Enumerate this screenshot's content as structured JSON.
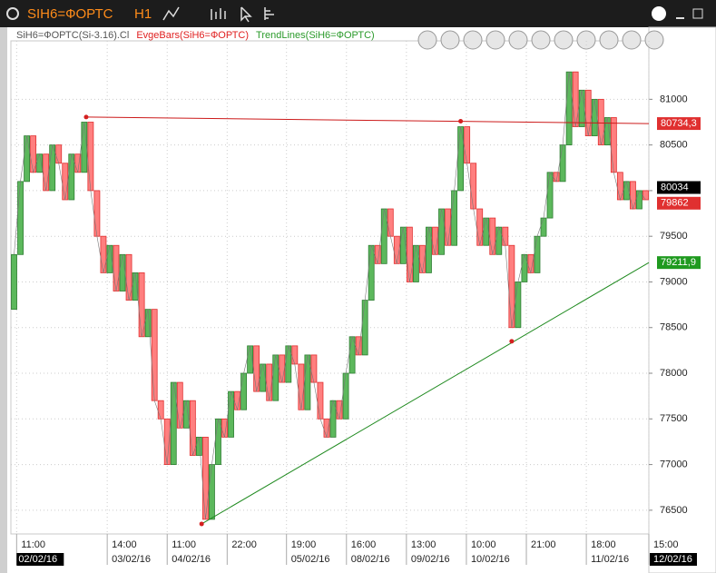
{
  "header": {
    "symbol": "SIH6=ФОРТС",
    "timeframe": "H1"
  },
  "chart_data": {
    "type": "box-bar",
    "legend": [
      {
        "label": "SiH6=ФОРТС(Si-3.16).Cl",
        "color": "#555555"
      },
      {
        "label": "EvgeBars(SiH6=ФОРТС)",
        "color": "#e02020"
      },
      {
        "label": "TrendLines(SiH6=ФОРТС)",
        "color": "#2a9a2a"
      }
    ],
    "up_color": "#5cb85c",
    "down_color": "#ff7f7f",
    "open": [
      78700,
      79300,
      80100,
      80600,
      80200,
      80400,
      80000,
      80500,
      80300,
      79900,
      80400,
      80200,
      80750,
      80000,
      79500,
      79100,
      79400,
      78900,
      79300,
      78800,
      79100,
      78400,
      78700,
      77700,
      77500,
      77000,
      77900,
      77400,
      77700,
      77100,
      77300,
      76400,
      77000,
      77500,
      77300,
      77800,
      77600,
      78000,
      78300,
      77800,
      78100,
      77700,
      78200,
      77900,
      78300,
      78100,
      77600,
      78200,
      77900,
      77500,
      77300,
      77700,
      77500,
      78000,
      78400,
      78200,
      78800,
      79400,
      79200,
      79800,
      79500,
      79200,
      79600,
      79000,
      79400,
      79100,
      79600,
      79300,
      79800,
      79400,
      80000,
      80700,
      80300,
      79800,
      79400,
      79700,
      79300,
      79600,
      79400,
      78500,
      79000,
      79300,
      79100,
      79500,
      79700,
      80200,
      80100,
      80500,
      81300,
      80700,
      81100,
      80600,
      81000,
      80500,
      80800,
      80200,
      79900,
      80100,
      79800,
      80000
    ],
    "close": [
      79300,
      80100,
      80600,
      80200,
      80400,
      80000,
      80500,
      80300,
      79900,
      80400,
      80200,
      80750,
      80000,
      79500,
      79100,
      79400,
      78900,
      79300,
      78800,
      79100,
      78400,
      78700,
      77700,
      77500,
      77000,
      77900,
      77400,
      77700,
      77100,
      77300,
      76400,
      77000,
      77500,
      77300,
      77800,
      77600,
      78000,
      78300,
      77800,
      78100,
      77700,
      78200,
      77900,
      78300,
      78100,
      77600,
      78200,
      77900,
      77500,
      77300,
      77700,
      77500,
      78000,
      78400,
      78200,
      78800,
      79400,
      79200,
      79800,
      79500,
      79200,
      79600,
      79000,
      79400,
      79100,
      79600,
      79300,
      79800,
      79400,
      80000,
      80700,
      80300,
      79800,
      79400,
      79700,
      79300,
      79600,
      79400,
      78500,
      79000,
      79300,
      79100,
      79500,
      79700,
      80200,
      80100,
      80500,
      81300,
      80700,
      81100,
      80600,
      81000,
      80500,
      80800,
      80200,
      79900,
      80100,
      79800,
      80000,
      79900
    ],
    "trendlines": [
      {
        "color": "#cc1a1a",
        "x": [
          11.8,
          100
        ],
        "y": [
          80806,
          80734.3
        ]
      },
      {
        "color": "#1f8a1f",
        "x": [
          29.9,
          100
        ],
        "y": [
          76350,
          79211.9
        ]
      }
    ],
    "pivots": {
      "x": [
        11.8,
        70.5,
        29.9,
        78.5
      ],
      "y": [
        80806,
        80760,
        76350,
        78350
      ],
      "color": "#d42020"
    },
    "price_labels": [
      {
        "value": 80734.3,
        "label": "80734,3",
        "color": "#e03030"
      },
      {
        "value": 80034,
        "label": "80034",
        "color": "#000000"
      },
      {
        "value": 79862,
        "label": "79862",
        "color": "#e03030"
      },
      {
        "value": 79211.9,
        "label": "79211,9",
        "color": "#1f9a1f"
      }
    ],
    "xlim": [
      0,
      100
    ],
    "xticks": [
      {
        "value": 0.9,
        "label": "11:00"
      },
      {
        "value": 15.1,
        "label": "14:00"
      },
      {
        "value": 24.5,
        "label": "11:00"
      },
      {
        "value": 33.9,
        "label": "22:00"
      },
      {
        "value": 43.2,
        "label": "19:00"
      },
      {
        "value": 52.6,
        "label": "16:00"
      },
      {
        "value": 62,
        "label": "13:00"
      },
      {
        "value": 71.4,
        "label": "10:00"
      },
      {
        "value": 80.8,
        "label": "21:00"
      },
      {
        "value": 90.2,
        "label": "18:00"
      },
      {
        "value": 100,
        "label": "15:00"
      }
    ],
    "date_labels": [
      {
        "value": 0.9,
        "label": "02/02/16"
      },
      {
        "value": 15.1,
        "label": "03/02/16"
      },
      {
        "value": 24.5,
        "label": "04/02/16"
      },
      {
        "value": 43.2,
        "label": "05/02/16"
      },
      {
        "value": 52.6,
        "label": "08/02/16"
      },
      {
        "value": 62,
        "label": "09/02/16"
      },
      {
        "value": 71.4,
        "label": "10/02/16"
      },
      {
        "value": 90.2,
        "label": "11/02/16"
      },
      {
        "value": 100,
        "label": "12/02/16"
      }
    ],
    "ylim": [
      76240,
      81640
    ],
    "yticks": [
      76500,
      77000,
      77500,
      78000,
      78500,
      79000,
      79500,
      80000,
      80500,
      81000
    ],
    "grid": true
  }
}
